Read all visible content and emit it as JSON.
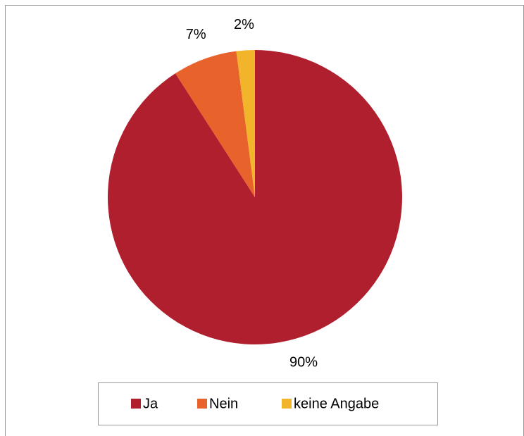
{
  "chart_data": {
    "type": "pie",
    "categories": [
      "Ja",
      "Nein",
      "keine Angabe"
    ],
    "values": [
      90,
      7,
      2
    ],
    "value_labels": [
      "90%",
      "7%",
      "2%"
    ],
    "colors": [
      "#b01f2e",
      "#e8632b",
      "#f2b42b"
    ],
    "legend": "bottom"
  }
}
